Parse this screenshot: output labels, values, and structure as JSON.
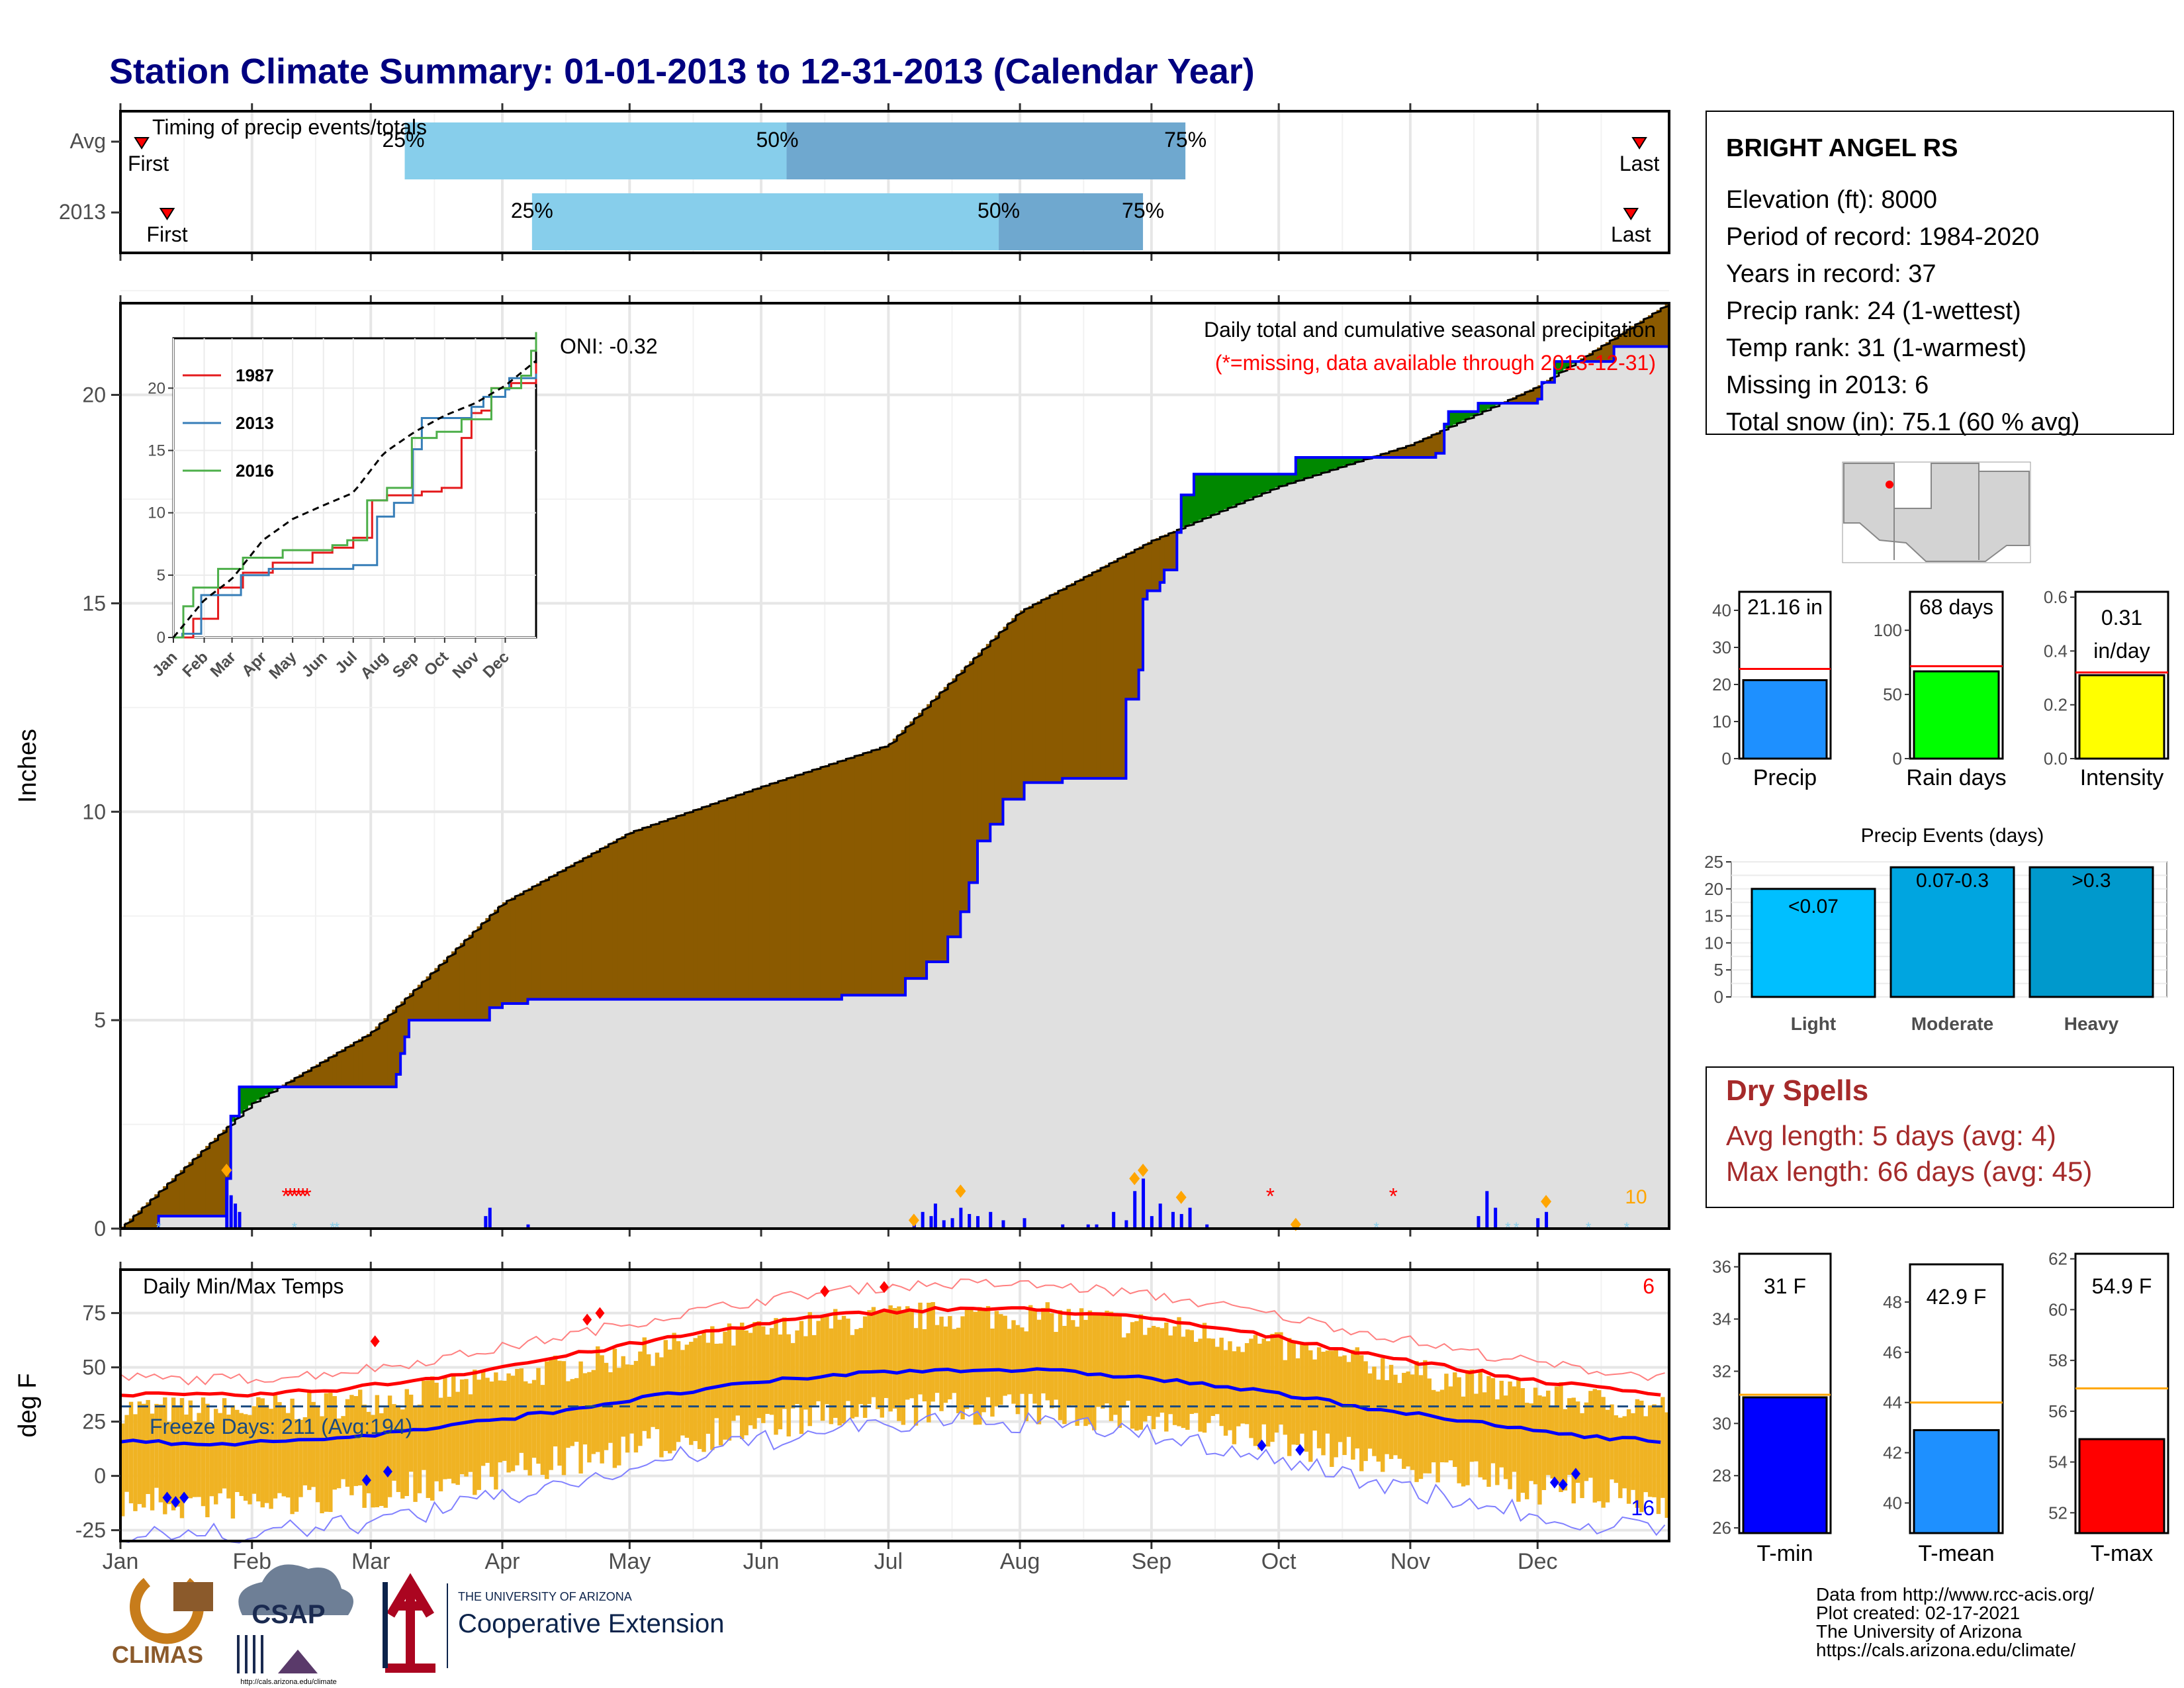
{
  "title": "Station Climate Summary: 01-01-2013 to 12-31-2013 (Calendar Year)",
  "months": [
    "Jan",
    "Feb",
    "Mar",
    "Apr",
    "May",
    "Jun",
    "Jul",
    "Aug",
    "Sep",
    "Oct",
    "Nov",
    "Dec"
  ],
  "timing": {
    "label": "Timing of precip events/totals",
    "rows": [
      {
        "name": "Avg",
        "first_label": "First",
        "last_label": "Last",
        "first_doy": 5,
        "last_doy": 358,
        "p25": 67,
        "p50": 157,
        "p75": 251,
        "p25_label": "25%",
        "p50_label": "50%",
        "p75_label": "75%"
      },
      {
        "name": "2013",
        "first_label": "First",
        "last_label": "Last",
        "first_doy": 11,
        "last_doy": 356,
        "p25": 97,
        "p50": 207,
        "p75": 241,
        "p25_label": "25%",
        "p50_label": "50%",
        "p75_label": "75%"
      }
    ]
  },
  "precip_panel": {
    "ylabel": "Inches",
    "yticks": [
      0,
      5,
      10,
      15,
      20
    ],
    "ylim": [
      0,
      22.2
    ],
    "annotation": "Daily total and cumulative seasonal precipitation",
    "missing_note": "(*=missing, data available through 2013-12-31)",
    "oni": "ONI: -0.32",
    "count_label": "10",
    "colors": {
      "above_avg": "#8b5a00",
      "below_avg": "#008800",
      "obs_line": "#0000ff",
      "fill": "#e0e0e0",
      "event": "#0000ff",
      "diamond": "#ffa500",
      "missing": "#ff0000"
    }
  },
  "inset": {
    "yticks": [
      0,
      5,
      10,
      15,
      20
    ],
    "legend": [
      {
        "name": "1987",
        "color": "#e41a1c"
      },
      {
        "name": "2013",
        "color": "#377eb8"
      },
      {
        "name": "2016",
        "color": "#4daf4a"
      }
    ]
  },
  "temp_panel": {
    "title": "Daily Min/Max Temps",
    "ylabel": "deg F",
    "yticks": [
      -25,
      0,
      25,
      50,
      75
    ],
    "ylim": [
      -30,
      95
    ],
    "freeze_label": "Freeze Days: 211 (Avg:194)",
    "freeze_line": 32,
    "top_count": "6",
    "bottom_count": "16"
  },
  "station": {
    "name": "BRIGHT ANGEL RS",
    "lines": [
      "Elevation (ft): 8000",
      "Period of record: 1984-2020",
      "Years in record: 37",
      "Precip rank: 24 (1-wettest)",
      "Temp rank: 31 (1-warmest)",
      "Missing in 2013: 6",
      "Total snow (in): 75.1 (60 % avg)"
    ]
  },
  "chart_data": [
    {
      "type": "bar",
      "title": "",
      "categories": [
        "Precip"
      ],
      "values": [
        21.16
      ],
      "avg": 24.2,
      "ylim": [
        0,
        45
      ],
      "yticks": [
        0,
        10,
        20,
        30,
        40
      ],
      "value_label": "21.16 in",
      "color": "#1e90ff"
    },
    {
      "type": "bar",
      "title": "",
      "categories": [
        "Rain days"
      ],
      "values": [
        68
      ],
      "avg": 72,
      "ylim": [
        0,
        130
      ],
      "yticks": [
        0,
        50,
        100
      ],
      "value_label": "68 days",
      "color": "#00ff00"
    },
    {
      "type": "bar",
      "title": "",
      "categories": [
        "Intensity"
      ],
      "values": [
        0.31
      ],
      "avg": 0.32,
      "ylim": [
        0,
        0.62
      ],
      "yticks": [
        0.0,
        0.2,
        0.4,
        0.6
      ],
      "value_label": "0.31",
      "value_label2": "in/day",
      "color": "#ffff00"
    },
    {
      "type": "bar",
      "title": "Precip Events (days)",
      "categories": [
        "Light",
        "Moderate",
        "Heavy"
      ],
      "values": [
        20,
        24,
        24
      ],
      "value_labels": [
        "<0.07",
        "0.07-0.3",
        ">0.3"
      ],
      "ylim": [
        0,
        25
      ],
      "yticks": [
        0,
        5,
        10,
        15,
        20,
        25
      ],
      "colors": [
        "#00bfff",
        "#00a5e0",
        "#0099cc"
      ]
    },
    {
      "type": "bar",
      "title": "",
      "categories": [
        "T-min"
      ],
      "values": [
        31.0
      ],
      "avg": 31.1,
      "ylim": [
        25.8,
        36.5
      ],
      "yticks": [
        26,
        28,
        30,
        32,
        34,
        36
      ],
      "value_label": "31 F",
      "color": "#0000ff"
    },
    {
      "type": "bar",
      "title": "",
      "categories": [
        "T-mean"
      ],
      "values": [
        42.9
      ],
      "avg": 44.0,
      "ylim": [
        38.8,
        49.5
      ],
      "yticks": [
        40,
        42,
        44,
        46,
        48
      ],
      "value_label": "42.9 F",
      "color": "#1e90ff"
    },
    {
      "type": "bar",
      "title": "",
      "categories": [
        "T-max"
      ],
      "values": [
        54.9
      ],
      "avg": 56.9,
      "ylim": [
        51.2,
        62.2
      ],
      "yticks": [
        52,
        54,
        56,
        58,
        60,
        62
      ],
      "value_label": "54.9 F",
      "color": "#ff0000"
    }
  ],
  "dry_spells": {
    "title": "Dry Spells",
    "lines": [
      "Avg length: 5 days (avg: 4)",
      "Max length: 66 days (avg: 45)"
    ]
  },
  "credits": [
    "Data from http://www.rcc-acis.org/",
    "Plot created: 02-17-2021",
    "The University of Arizona",
    "https://cals.arizona.edu/climate/"
  ],
  "logos": {
    "climas": "CLIMAS",
    "csap": "CSAP",
    "csap_url": "http://cals.arizona.edu/climate",
    "ua_small": "THE UNIVERSITY OF ARIZONA",
    "ua_ext": "Cooperative Extension"
  }
}
